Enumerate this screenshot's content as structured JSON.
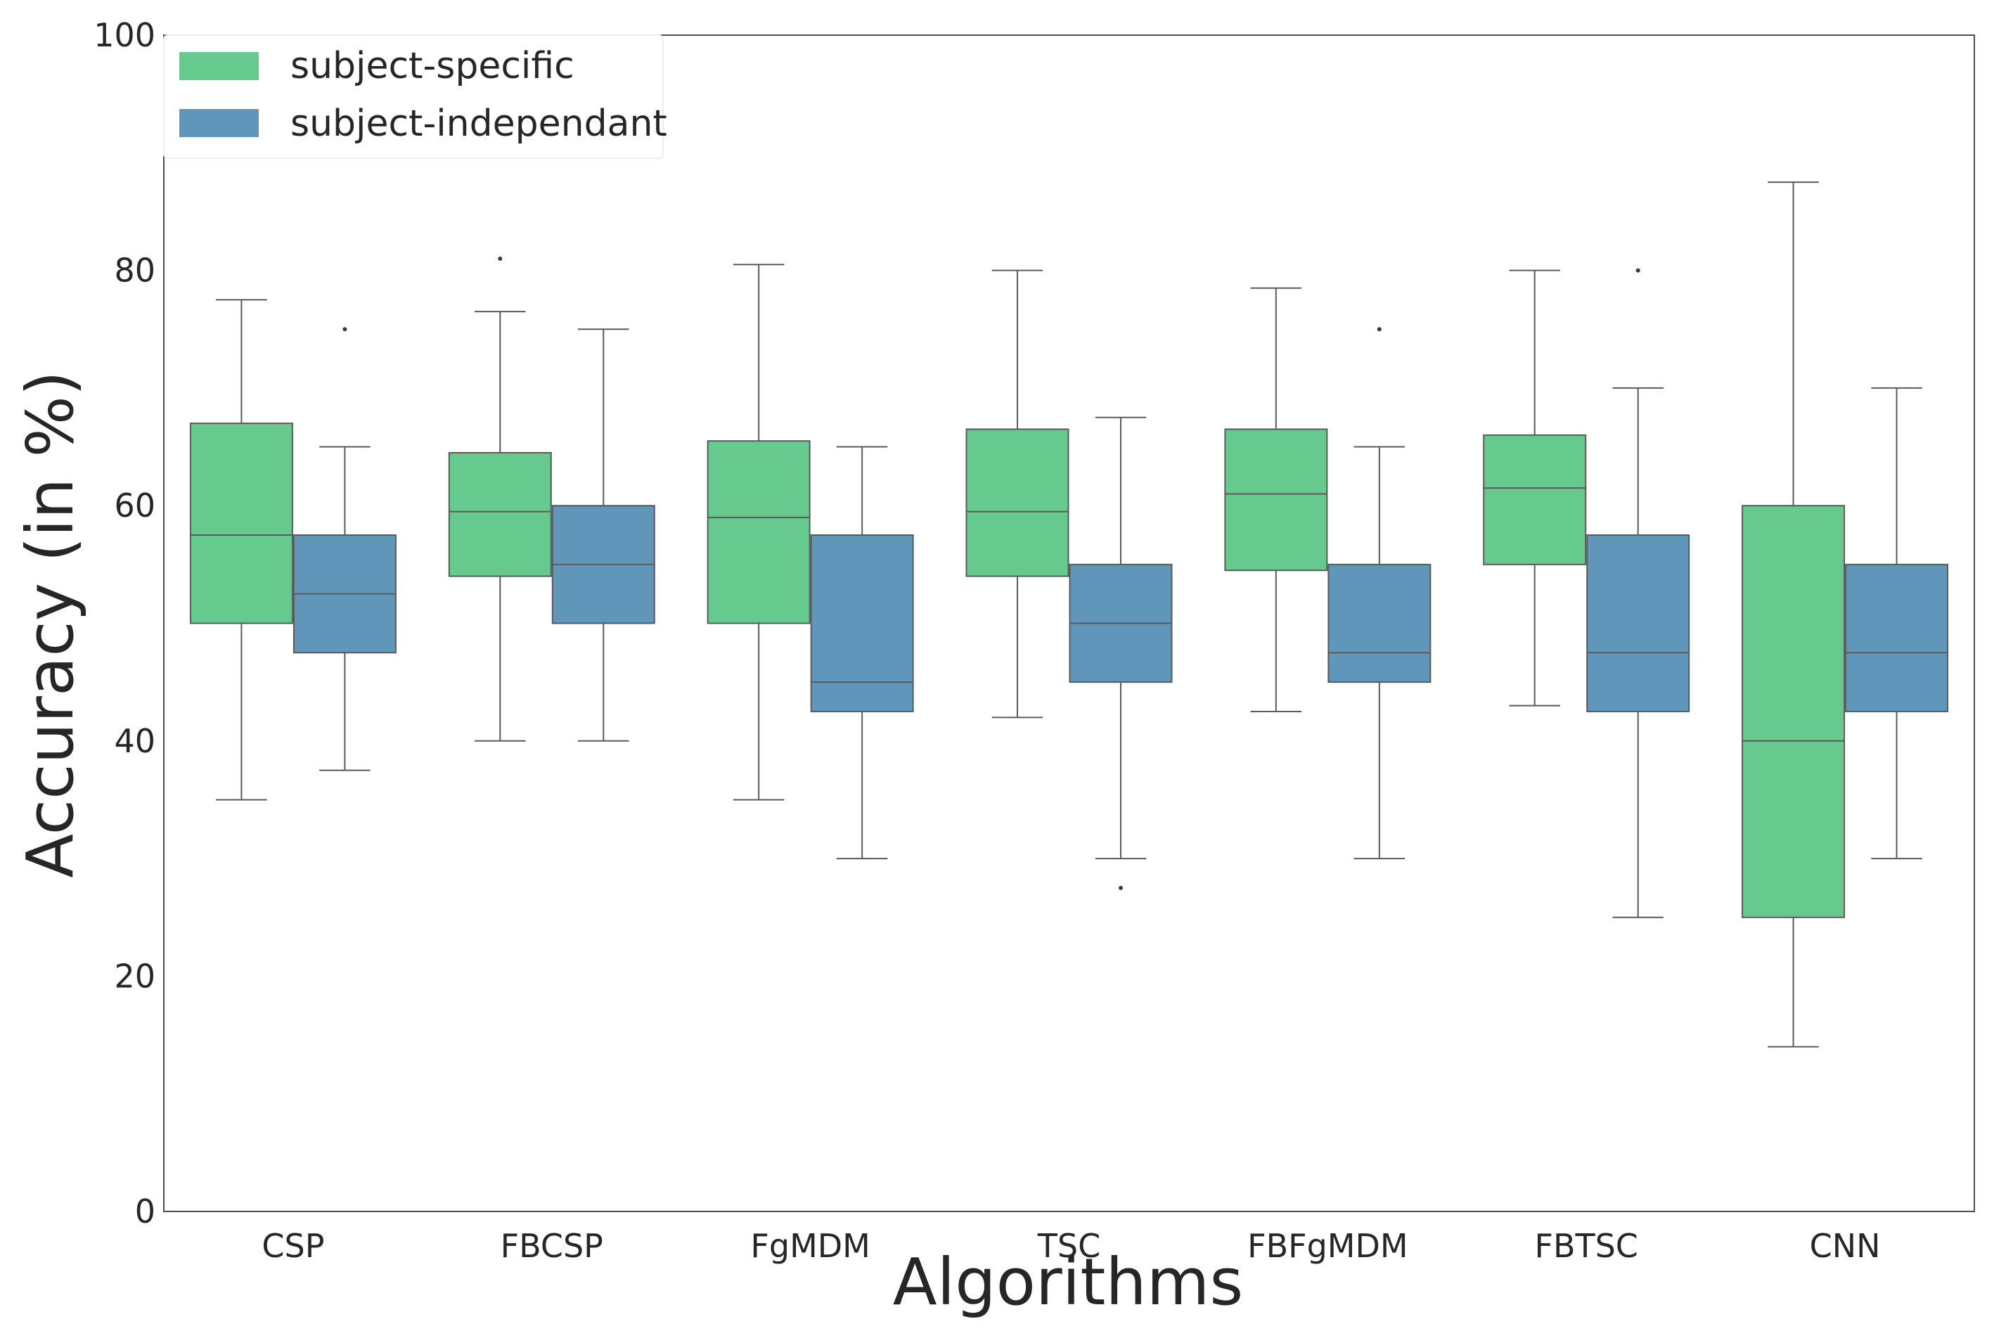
{
  "chart_data": {
    "type": "box",
    "title": "",
    "xlabel": "Algorithms",
    "ylabel": "Accuracy (in %)",
    "ylim": [
      0,
      100
    ],
    "yticks": [
      0,
      20,
      40,
      60,
      80,
      100
    ],
    "grid": false,
    "legend_position": "top-left",
    "categories": [
      "CSP",
      "FBCSP",
      "FgMDM",
      "TSC",
      "FBFgMDM",
      "FBTSC",
      "CNN"
    ],
    "series": [
      {
        "name": "subject-specific",
        "color": "#66c98e",
        "boxes": [
          {
            "whisker_low": 35.0,
            "q1": 50.0,
            "median": 57.5,
            "q3": 67.0,
            "whisker_high": 77.5,
            "outliers": []
          },
          {
            "whisker_low": 40.0,
            "q1": 54.0,
            "median": 59.5,
            "q3": 64.5,
            "whisker_high": 76.5,
            "outliers": [
              81.0
            ]
          },
          {
            "whisker_low": 35.0,
            "q1": 50.0,
            "median": 59.0,
            "q3": 65.5,
            "whisker_high": 80.5,
            "outliers": []
          },
          {
            "whisker_low": 42.0,
            "q1": 54.0,
            "median": 59.5,
            "q3": 66.5,
            "whisker_high": 80.0,
            "outliers": []
          },
          {
            "whisker_low": 42.5,
            "q1": 54.5,
            "median": 61.0,
            "q3": 66.5,
            "whisker_high": 78.5,
            "outliers": []
          },
          {
            "whisker_low": 43.0,
            "q1": 55.0,
            "median": 61.5,
            "q3": 66.0,
            "whisker_high": 80.0,
            "outliers": []
          },
          {
            "whisker_low": 14.0,
            "q1": 25.0,
            "median": 40.0,
            "q3": 60.0,
            "whisker_high": 87.5,
            "outliers": []
          }
        ]
      },
      {
        "name": "subject-independant",
        "color": "#6096ba",
        "boxes": [
          {
            "whisker_low": 37.5,
            "q1": 47.5,
            "median": 52.5,
            "q3": 57.5,
            "whisker_high": 65.0,
            "outliers": [
              75.0
            ]
          },
          {
            "whisker_low": 40.0,
            "q1": 50.0,
            "median": 55.0,
            "q3": 60.0,
            "whisker_high": 75.0,
            "outliers": []
          },
          {
            "whisker_low": 30.0,
            "q1": 42.5,
            "median": 45.0,
            "q3": 57.5,
            "whisker_high": 65.0,
            "outliers": []
          },
          {
            "whisker_low": 30.0,
            "q1": 45.0,
            "median": 50.0,
            "q3": 55.0,
            "whisker_high": 67.5,
            "outliers": [
              27.5
            ]
          },
          {
            "whisker_low": 30.0,
            "q1": 45.0,
            "median": 47.5,
            "q3": 55.0,
            "whisker_high": 65.0,
            "outliers": [
              75.0
            ]
          },
          {
            "whisker_low": 25.0,
            "q1": 42.5,
            "median": 47.5,
            "q3": 57.5,
            "whisker_high": 70.0,
            "outliers": [
              80.0
            ]
          },
          {
            "whisker_low": 30.0,
            "q1": 42.5,
            "median": 47.5,
            "q3": 55.0,
            "whisker_high": 70.0,
            "outliers": []
          }
        ]
      }
    ]
  }
}
